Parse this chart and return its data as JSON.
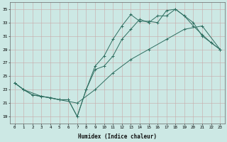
{
  "xlabel": "Humidex (Indice chaleur)",
  "bg_color": "#cce8e4",
  "grid_color": "#c8a8a8",
  "line_color": "#2e6e60",
  "xlim": [
    -0.5,
    23.5
  ],
  "ylim": [
    18.0,
    36.0
  ],
  "xticks": [
    0,
    1,
    2,
    3,
    4,
    5,
    6,
    7,
    8,
    9,
    10,
    11,
    12,
    13,
    14,
    15,
    16,
    17,
    18,
    19,
    20,
    21,
    22,
    23
  ],
  "yticks": [
    19,
    21,
    23,
    25,
    27,
    29,
    31,
    33,
    35
  ],
  "line1_x": [
    0,
    1,
    2,
    3,
    4,
    5,
    6,
    7,
    8,
    9,
    10,
    11,
    12,
    13,
    14,
    15,
    16,
    17,
    18,
    19,
    20,
    21,
    22,
    23
  ],
  "line1_y": [
    24.0,
    23.0,
    22.2,
    22.0,
    21.8,
    21.5,
    21.5,
    19.0,
    23.0,
    26.5,
    28.0,
    30.5,
    32.5,
    34.2,
    33.2,
    33.2,
    33.0,
    34.8,
    35.0,
    34.0,
    32.5,
    31.2,
    30.0,
    29.0
  ],
  "line2_x": [
    0,
    1,
    2,
    3,
    4,
    5,
    6,
    7,
    8,
    9,
    10,
    11,
    12,
    13,
    14,
    15,
    16,
    17,
    18,
    19,
    20,
    21,
    22,
    23
  ],
  "line2_y": [
    24.0,
    23.0,
    22.2,
    22.0,
    21.8,
    21.5,
    21.5,
    19.0,
    23.0,
    26.0,
    26.5,
    28.0,
    30.5,
    32.0,
    33.5,
    33.0,
    34.0,
    34.0,
    35.0,
    34.0,
    33.0,
    31.0,
    30.0,
    29.0
  ],
  "line3_x": [
    0,
    1,
    3,
    5,
    7,
    9,
    11,
    13,
    15,
    17,
    19,
    21,
    23
  ],
  "line3_y": [
    24.0,
    23.0,
    22.0,
    21.5,
    21.0,
    23.0,
    25.5,
    27.5,
    29.0,
    30.5,
    32.0,
    32.5,
    29.0
  ]
}
